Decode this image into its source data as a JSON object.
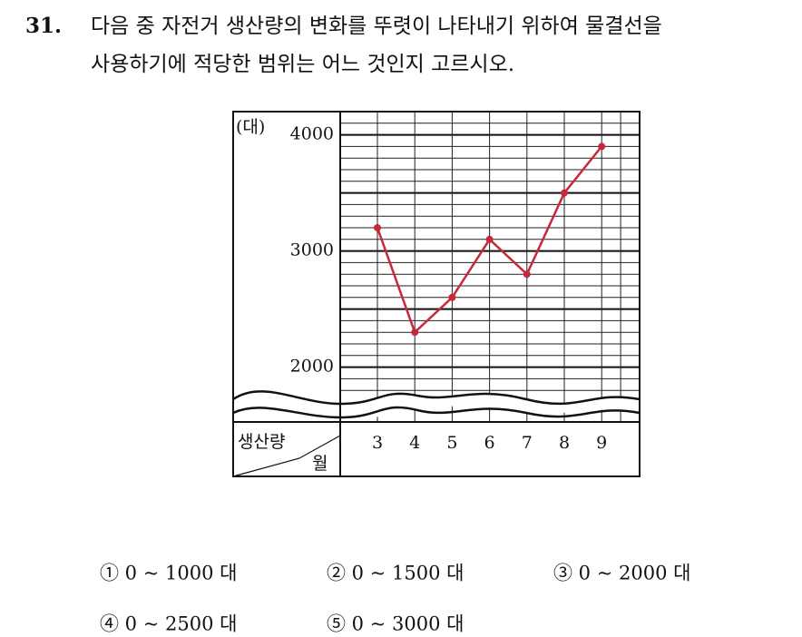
{
  "question": {
    "number": "31.",
    "lines": [
      "다음 중 자전거 생산량의 변화를 뚜렷이 나타내기 위하여 물결선을",
      "사용하기에 적당한 범위는 어느 것인지 고르시오."
    ]
  },
  "chart_data": {
    "type": "line",
    "y_unit": "(대)",
    "x_header": "월",
    "y_header": "생산량",
    "categories": [
      "3",
      "4",
      "5",
      "6",
      "7",
      "8",
      "9"
    ],
    "series": [
      {
        "name": "생산량",
        "color": "#c8283c",
        "values": [
          3200,
          2300,
          2600,
          3100,
          2800,
          3500,
          3900
        ]
      }
    ],
    "ylim": [
      1700,
      4200
    ],
    "yticks": [
      2000,
      3000,
      4000
    ],
    "ygrid_major": [
      2000,
      2500,
      3000,
      3500,
      4000
    ],
    "ygrid_minor": [
      1800,
      1900,
      2100,
      2200,
      2300,
      2400,
      2600,
      2700,
      2800,
      2900,
      3100,
      3200,
      3300,
      3400,
      3600,
      3700,
      3800,
      3900,
      4100
    ]
  },
  "options": [
    "① 0 ~ 1000 대",
    "② 0 ~ 1500 대",
    "③ 0 ~ 2000 대",
    "④ 0 ~ 2500 대",
    "⑤ 0 ~ 3000 대"
  ]
}
